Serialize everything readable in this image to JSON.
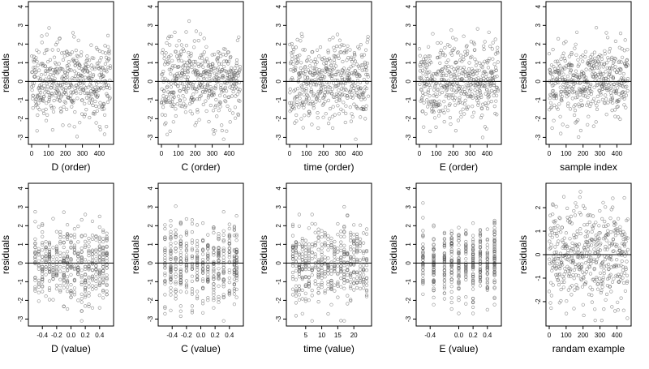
{
  "chart_data": [
    {
      "type": "scatter",
      "xlabel": "D (order)",
      "ylabel": "residuals",
      "xticks": [
        "0",
        "100",
        "200",
        "300",
        "400"
      ],
      "yticks": [
        "-3",
        "-2",
        "-1",
        "0",
        "1",
        "2",
        "3",
        "4"
      ],
      "xlim": [
        0,
        465
      ],
      "ylim": [
        -3.2,
        4.1
      ],
      "gen": {
        "kind": "order",
        "n": 465,
        "seed": 11,
        "range": [
          0,
          465
        ]
      }
    },
    {
      "type": "scatter",
      "xlabel": "C (order)",
      "ylabel": "residuals",
      "xticks": [
        "0",
        "100",
        "200",
        "300",
        "400"
      ],
      "yticks": [
        "-3",
        "-2",
        "-1",
        "0",
        "1",
        "2",
        "3",
        "4"
      ],
      "xlim": [
        0,
        465
      ],
      "ylim": [
        -3.2,
        4.1
      ],
      "gen": {
        "kind": "order",
        "n": 465,
        "seed": 23,
        "range": [
          0,
          465
        ]
      }
    },
    {
      "type": "scatter",
      "xlabel": "time (order)",
      "ylabel": "residuals",
      "xticks": [
        "0",
        "100",
        "200",
        "300",
        "400"
      ],
      "yticks": [
        "-3",
        "-2",
        "-1",
        "0",
        "1",
        "2",
        "3",
        "4"
      ],
      "xlim": [
        0,
        465
      ],
      "ylim": [
        -3.2,
        4.1
      ],
      "gen": {
        "kind": "order",
        "n": 465,
        "seed": 37,
        "range": [
          0,
          465
        ]
      }
    },
    {
      "type": "scatter",
      "xlabel": "E (order)",
      "ylabel": "residuals",
      "xticks": [
        "0",
        "100",
        "200",
        "300",
        "400"
      ],
      "yticks": [
        "-3",
        "-2",
        "-1",
        "0",
        "1",
        "2",
        "3",
        "4"
      ],
      "xlim": [
        0,
        465
      ],
      "ylim": [
        -3.2,
        4.1
      ],
      "gen": {
        "kind": "order",
        "n": 465,
        "seed": 41,
        "range": [
          0,
          465
        ]
      }
    },
    {
      "type": "scatter",
      "xlabel": "sample index",
      "ylabel": "residuals",
      "xticks": [
        "0",
        "100",
        "200",
        "300",
        "400"
      ],
      "yticks": [
        "-3",
        "-2",
        "-1",
        "0",
        "1",
        "2",
        "3",
        "4"
      ],
      "xlim": [
        0,
        465
      ],
      "ylim": [
        -3.2,
        4.1
      ],
      "gen": {
        "kind": "order",
        "n": 465,
        "seed": 53,
        "range": [
          0,
          465
        ]
      }
    },
    {
      "type": "scatter",
      "xlabel": "D (value)",
      "ylabel": "residuals",
      "xticks": [
        "-0.4",
        "-0.2",
        "0.0",
        "0.2",
        "0.4"
      ],
      "yticks": [
        "-3",
        "-2",
        "-1",
        "0",
        "1",
        "2",
        "3",
        "4"
      ],
      "xlim": [
        -0.55,
        0.55
      ],
      "ylim": [
        -3.2,
        4.1
      ],
      "gen": {
        "kind": "levels",
        "n": 465,
        "seed": 61,
        "levels": [
          -0.5,
          -0.45,
          -0.4,
          -0.35,
          -0.3,
          -0.25,
          -0.2,
          -0.15,
          -0.1,
          -0.05,
          0.0,
          0.05,
          0.1,
          0.15,
          0.2,
          0.25,
          0.3,
          0.35,
          0.4,
          0.45,
          0.5
        ]
      }
    },
    {
      "type": "scatter",
      "xlabel": "C (value)",
      "ylabel": "residuals",
      "xticks": [
        "-0.4",
        "-0.2",
        "0.0",
        "0.2",
        "0.4"
      ],
      "yticks": [
        "-3",
        "-2",
        "-1",
        "0",
        "1",
        "2",
        "3",
        "4"
      ],
      "xlim": [
        -0.55,
        0.55
      ],
      "ylim": [
        -3.2,
        4.1
      ],
      "gen": {
        "kind": "levels",
        "n": 465,
        "seed": 71,
        "levels": [
          -0.5,
          -0.42,
          -0.35,
          -0.28,
          -0.2,
          -0.12,
          -0.05,
          0.03,
          0.1,
          0.18,
          0.25,
          0.32,
          0.4,
          0.47,
          0.5
        ]
      }
    },
    {
      "type": "scatter",
      "xlabel": "time (value)",
      "ylabel": "residuals",
      "xticks": [
        "5",
        "10",
        "15",
        "20"
      ],
      "yticks": [
        "-3",
        "-2",
        "-1",
        "0",
        "1",
        "2",
        "3",
        "4"
      ],
      "xlim": [
        0,
        24.5
      ],
      "ylim": [
        -3.2,
        4.1
      ],
      "gen": {
        "kind": "levels",
        "n": 465,
        "seed": 83,
        "levels": [
          1,
          2,
          3,
          4,
          5,
          6,
          7,
          8,
          9,
          10,
          11,
          12,
          13,
          14,
          15,
          16,
          17,
          18,
          19,
          20,
          21,
          22,
          23,
          24
        ]
      }
    },
    {
      "type": "scatter",
      "xlabel": "E (value)",
      "ylabel": "residuals",
      "xticks": [
        "-0.4",
        "0.0",
        "0.2",
        "0.4"
      ],
      "yticks": [
        "-3",
        "-2",
        "-1",
        "0",
        "1",
        "2",
        "3",
        "4"
      ],
      "xlim": [
        -0.55,
        0.55
      ],
      "ylim": [
        -3.2,
        4.1
      ],
      "gen": {
        "kind": "levels",
        "n": 465,
        "seed": 97,
        "levels": [
          -0.5,
          -0.35,
          -0.2,
          -0.1,
          0.0,
          0.1,
          0.2,
          0.3,
          0.4,
          0.5
        ]
      }
    },
    {
      "type": "scatter",
      "xlabel": "randam example",
      "ylabel": "residuals",
      "xticks": [
        "0",
        "100",
        "200",
        "300",
        "400"
      ],
      "yticks": [
        "-2",
        "-1",
        "0",
        "1",
        "2"
      ],
      "xlim": [
        0,
        465
      ],
      "ylim": [
        -2.9,
        2.9
      ],
      "gen": {
        "kind": "order",
        "n": 465,
        "seed": 101,
        "range": [
          0,
          465
        ]
      }
    }
  ]
}
